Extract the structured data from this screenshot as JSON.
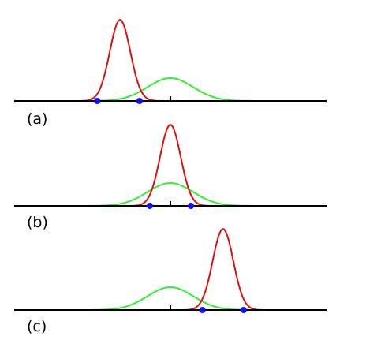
{
  "panels": [
    {
      "label": "(a)",
      "green": {
        "mean": 0,
        "sd": 1.0,
        "height": 1.0
      },
      "red": {
        "mean": -2.2,
        "sd": 0.45,
        "height": 3.55
      },
      "points": [
        -3.2,
        -1.35
      ]
    },
    {
      "label": "(b)",
      "green": {
        "mean": 0,
        "sd": 1.0,
        "height": 1.0
      },
      "red": {
        "mean": 0,
        "sd": 0.45,
        "height": 3.55
      },
      "points": [
        -0.9,
        0.9
      ]
    },
    {
      "label": "(c)",
      "green": {
        "mean": 0,
        "sd": 1.0,
        "height": 1.0
      },
      "red": {
        "mean": 2.3,
        "sd": 0.45,
        "height": 3.55
      },
      "points": [
        1.4,
        3.2
      ]
    }
  ],
  "colors": {
    "green": "#33ee33",
    "red": "#dd1111",
    "points": "#1111ee",
    "axis": "#000000"
  }
}
